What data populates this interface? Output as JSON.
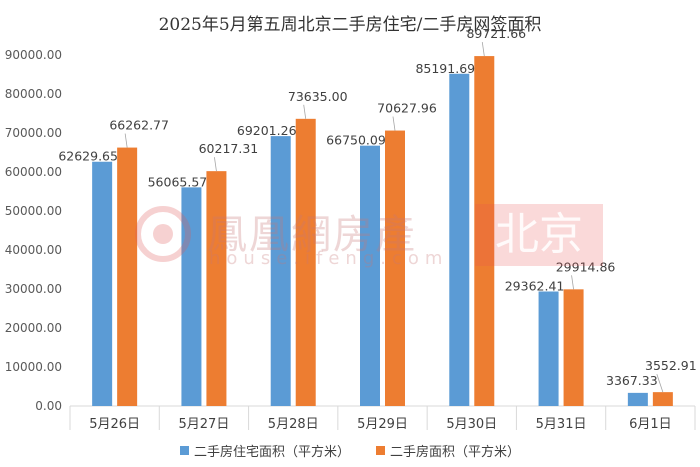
{
  "chart_data": {
    "type": "bar",
    "title": "2025年5月第五周北京二手房住宅/二手房网签面积",
    "categories": [
      "5月26日",
      "5月27日",
      "5月28日",
      "5月29日",
      "5月30日",
      "5月31日",
      "6月1日"
    ],
    "series": [
      {
        "name": "二手房住宅面积（平方米）",
        "color": "#5B9BD5",
        "values": [
          62629.65,
          56065.57,
          69201.26,
          66750.09,
          85191.69,
          29362.41,
          3367.33
        ],
        "labels": [
          "62629.65",
          "56065.57",
          "69201.26",
          "66750.09",
          "85191.69",
          "29362.41",
          "3367.33"
        ]
      },
      {
        "name": "二手房面积（平方米）",
        "color": "#ED7D31",
        "values": [
          66262.77,
          60217.31,
          73635.0,
          70627.96,
          89721.66,
          29914.86,
          3552.91
        ],
        "labels": [
          "66262.77",
          "60217.31",
          "73635.00",
          "70627.96",
          "89721.66",
          "29914.86",
          "3552.91"
        ]
      }
    ],
    "ylim": [
      0,
      90000
    ],
    "yticks": [
      "0.00",
      "10000.00",
      "20000.00",
      "30000.00",
      "40000.00",
      "50000.00",
      "60000.00",
      "70000.00",
      "80000.00",
      "90000.00"
    ],
    "xlabel": "",
    "ylabel": "",
    "grid": false,
    "legend_position": "bottom"
  },
  "watermark": {
    "brand": "鳳凰網房產",
    "url": "house.ifeng.com",
    "city": "北京"
  }
}
